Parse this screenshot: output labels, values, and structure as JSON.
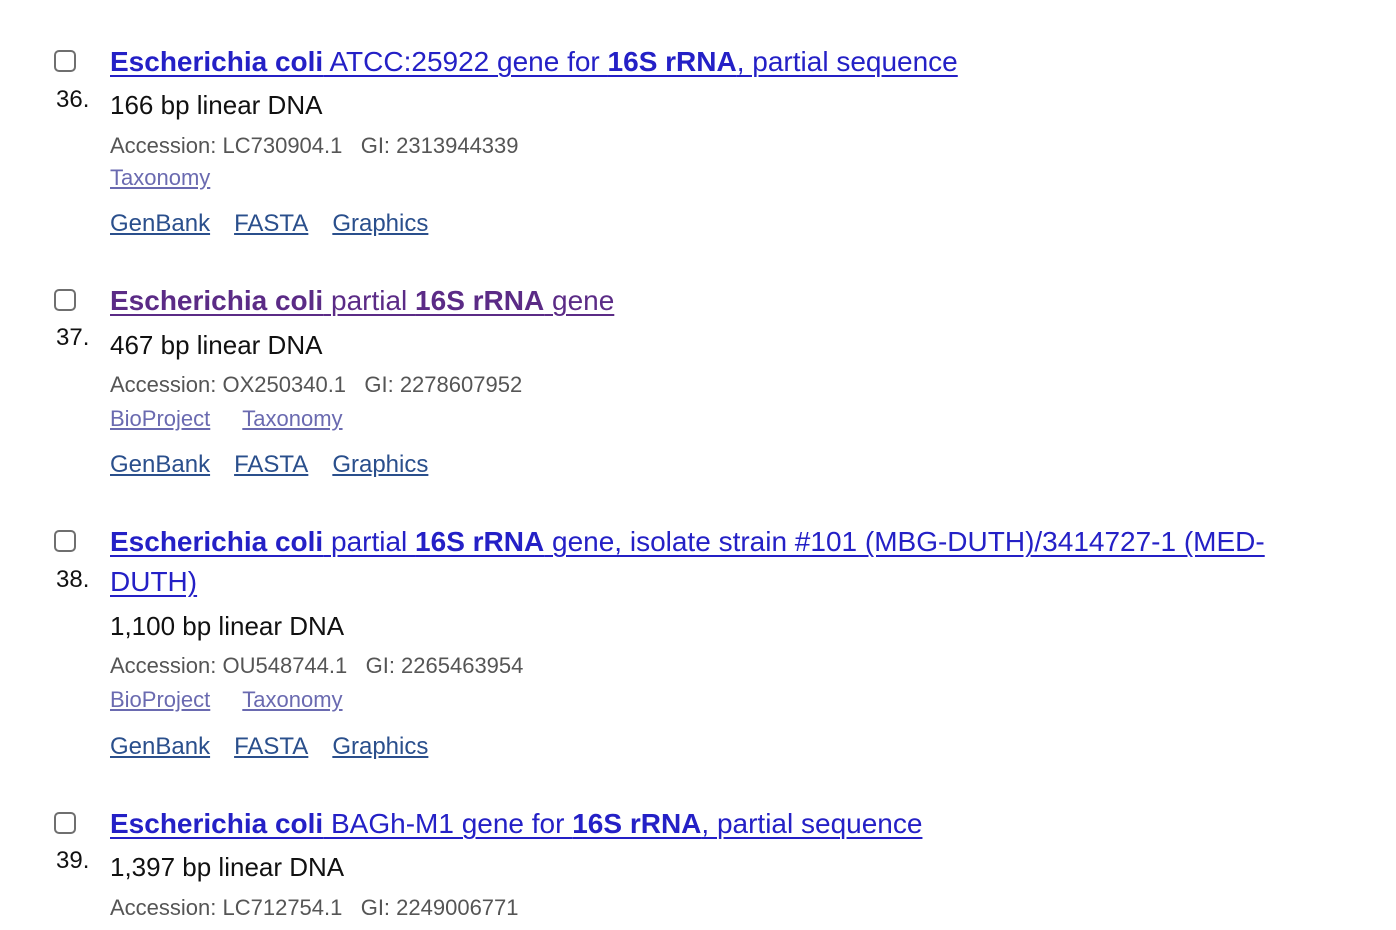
{
  "results": [
    {
      "number": "36.",
      "title_parts": [
        {
          "text": "Escherichia coli",
          "bold": true
        },
        {
          "text": " ATCC:25922 gene for ",
          "bold": false
        },
        {
          "text": "16S rRNA",
          "bold": true
        },
        {
          "text": ", partial sequence",
          "bold": false
        }
      ],
      "visited": false,
      "description": "166 bp linear DNA",
      "accession": "Accession: LC730904.1   GI: 2313944339",
      "links": [
        "Taxonomy"
      ],
      "formats": [
        "GenBank",
        "FASTA",
        "Graphics"
      ]
    },
    {
      "number": "37.",
      "title_parts": [
        {
          "text": "Escherichia coli",
          "bold": true
        },
        {
          "text": " partial ",
          "bold": false
        },
        {
          "text": "16S rRNA",
          "bold": true
        },
        {
          "text": " gene",
          "bold": false
        }
      ],
      "visited": true,
      "description": "467 bp linear DNA",
      "accession": "Accession: OX250340.1   GI: 2278607952",
      "links": [
        "BioProject",
        "Taxonomy"
      ],
      "formats": [
        "GenBank",
        "FASTA",
        "Graphics"
      ]
    },
    {
      "number": "38.",
      "title_parts": [
        {
          "text": "Escherichia coli",
          "bold": true
        },
        {
          "text": " partial ",
          "bold": false
        },
        {
          "text": "16S rRNA",
          "bold": true
        },
        {
          "text": " gene, isolate strain #101 (MBG-DUTH)/3414727-1 (MED-DUTH)",
          "bold": false
        }
      ],
      "visited": false,
      "description": "1,100 bp linear DNA",
      "accession": "Accession: OU548744.1   GI: 2265463954",
      "links": [
        "BioProject",
        "Taxonomy"
      ],
      "formats": [
        "GenBank",
        "FASTA",
        "Graphics"
      ]
    },
    {
      "number": "39.",
      "title_parts": [
        {
          "text": "Escherichia coli",
          "bold": true
        },
        {
          "text": " BAGh-M1 gene for ",
          "bold": false
        },
        {
          "text": "16S rRNA",
          "bold": true
        },
        {
          "text": ", partial sequence",
          "bold": false
        }
      ],
      "visited": false,
      "description": "1,397 bp linear DNA",
      "accession": "Accession: LC712754.1   GI: 2249006771",
      "links": [],
      "formats": []
    }
  ],
  "colors": {
    "title_link": "#2420c6",
    "title_visited": "#5b2b86",
    "secondary_link": "#6a6ab0",
    "format_link": "#2a4f8c",
    "meta_text": "#555555"
  }
}
